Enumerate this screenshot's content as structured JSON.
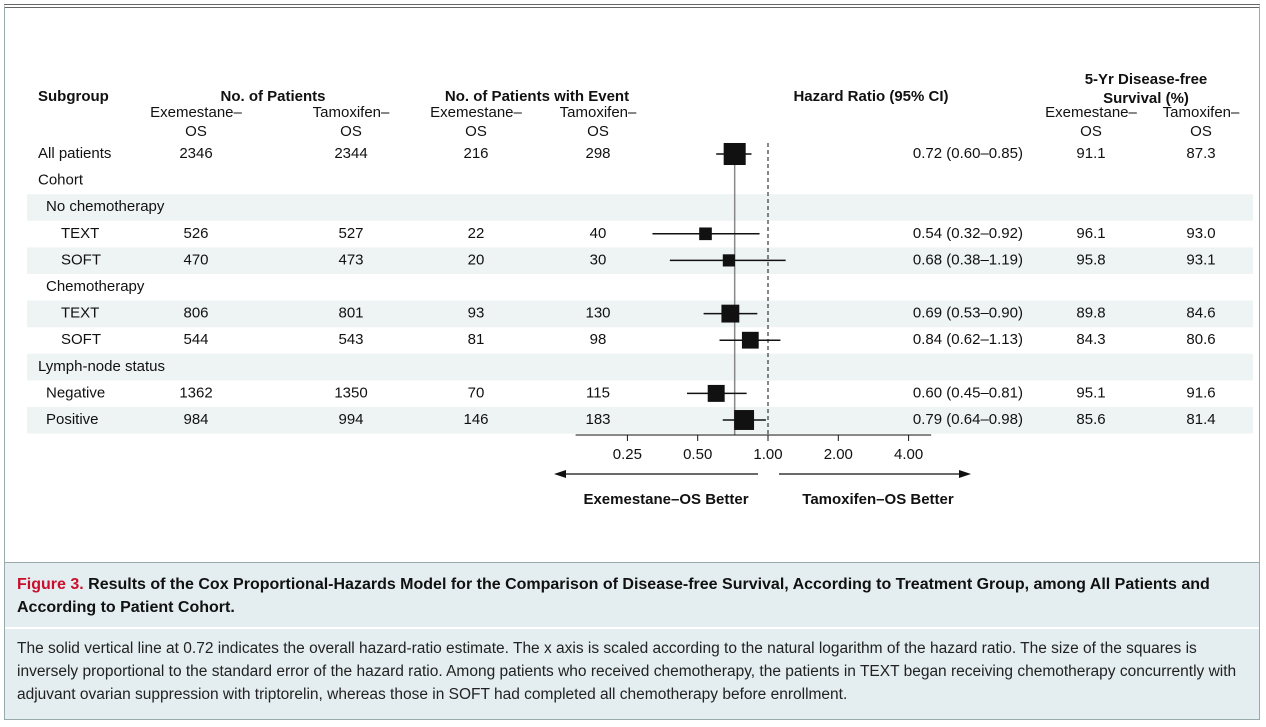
{
  "chart_data": {
    "type": "forest",
    "columns": {
      "subgroup": "Subgroup",
      "patients": "No. of Patients",
      "events": "No. of Patients with Event",
      "hr": "Hazard Ratio (95% CI)",
      "dfs": [
        "5-Yr Disease-free",
        "Survival (%)"
      ]
    },
    "arms": [
      [
        "Exemestane–",
        "OS"
      ],
      [
        "Tamoxifen–",
        "OS"
      ]
    ],
    "overall": {
      "label": "All patients",
      "exemestane_n": 2346,
      "tamoxifen_n": 2344,
      "exemestane_events": 216,
      "tamoxifen_events": 298,
      "hr": 0.72,
      "ci_low": 0.6,
      "ci_high": 0.85,
      "hr_label": "0.72 (0.60–0.85)",
      "dfs_exemestane": "91.1",
      "dfs_tamoxifen": "87.3"
    },
    "groups": [
      {
        "label": "Cohort",
        "items": [
          {
            "label": "No chemotherapy",
            "items": [
              {
                "label": "TEXT",
                "exemestane_n": 526,
                "tamoxifen_n": 527,
                "exemestane_events": 22,
                "tamoxifen_events": 40,
                "hr": 0.54,
                "ci_low": 0.32,
                "ci_high": 0.92,
                "hr_label": "0.54 (0.32–0.92)",
                "dfs_exemestane": "96.1",
                "dfs_tamoxifen": "93.0"
              },
              {
                "label": "SOFT",
                "exemestane_n": 470,
                "tamoxifen_n": 473,
                "exemestane_events": 20,
                "tamoxifen_events": 30,
                "hr": 0.68,
                "ci_low": 0.38,
                "ci_high": 1.19,
                "hr_label": "0.68 (0.38–1.19)",
                "dfs_exemestane": "95.8",
                "dfs_tamoxifen": "93.1"
              }
            ]
          },
          {
            "label": "Chemotherapy",
            "items": [
              {
                "label": "TEXT",
                "exemestane_n": 806,
                "tamoxifen_n": 801,
                "exemestane_events": 93,
                "tamoxifen_events": 130,
                "hr": 0.69,
                "ci_low": 0.53,
                "ci_high": 0.9,
                "hr_label": "0.69 (0.53–0.90)",
                "dfs_exemestane": "89.8",
                "dfs_tamoxifen": "84.6"
              },
              {
                "label": "SOFT",
                "exemestane_n": 544,
                "tamoxifen_n": 543,
                "exemestane_events": 81,
                "tamoxifen_events": 98,
                "hr": 0.84,
                "ci_low": 0.62,
                "ci_high": 1.13,
                "hr_label": "0.84 (0.62–1.13)",
                "dfs_exemestane": "84.3",
                "dfs_tamoxifen": "80.6"
              }
            ]
          }
        ]
      },
      {
        "label": "Lymph-node status",
        "items": [
          {
            "label": "Negative",
            "exemestane_n": 1362,
            "tamoxifen_n": 1350,
            "exemestane_events": 70,
            "tamoxifen_events": 115,
            "hr": 0.6,
            "ci_low": 0.45,
            "ci_high": 0.81,
            "hr_label": "0.60 (0.45–0.81)",
            "dfs_exemestane": "95.1",
            "dfs_tamoxifen": "91.6"
          },
          {
            "label": "Positive",
            "exemestane_n": 984,
            "tamoxifen_n": 994,
            "exemestane_events": 146,
            "tamoxifen_events": 183,
            "hr": 0.79,
            "ci_low": 0.64,
            "ci_high": 0.98,
            "hr_label": "0.79 (0.64–0.98)",
            "dfs_exemestane": "85.6",
            "dfs_tamoxifen": "81.4"
          }
        ]
      }
    ],
    "log_scale": true,
    "xlim": [
      0.15,
      5
    ],
    "xticks": [
      {
        "value": 0.25,
        "label": "0.25"
      },
      {
        "value": 0.5,
        "label": "0.50"
      },
      {
        "value": 1,
        "label": "1.00"
      },
      {
        "value": 2,
        "label": "2.00"
      },
      {
        "value": 4,
        "label": "4.00"
      }
    ],
    "left_label": "Exemestane–OS Better",
    "right_label": "Tamoxifen–OS Better",
    "color": "#111111",
    "figure_label": "Figure 3.",
    "title": "Results of the Cox Proportional-Hazards Model for the Comparison of Disease-free Survival, According to Treatment Group, among All Patients and According to Patient Cohort.",
    "description": "The solid vertical line at 0.72 indicates the overall hazard-ratio estimate. The x axis is scaled according to the natural logarithm of the hazard ratio. The size of the squares is inversely proportional to the standard error of the hazard ratio. Among patients who received chemotherapy, the patients in TEXT began receiving chemotherapy concurrently with adjuvant ovarian suppression with triptorelin, whereas those in SOFT had completed all chemotherapy before enrollment."
  }
}
